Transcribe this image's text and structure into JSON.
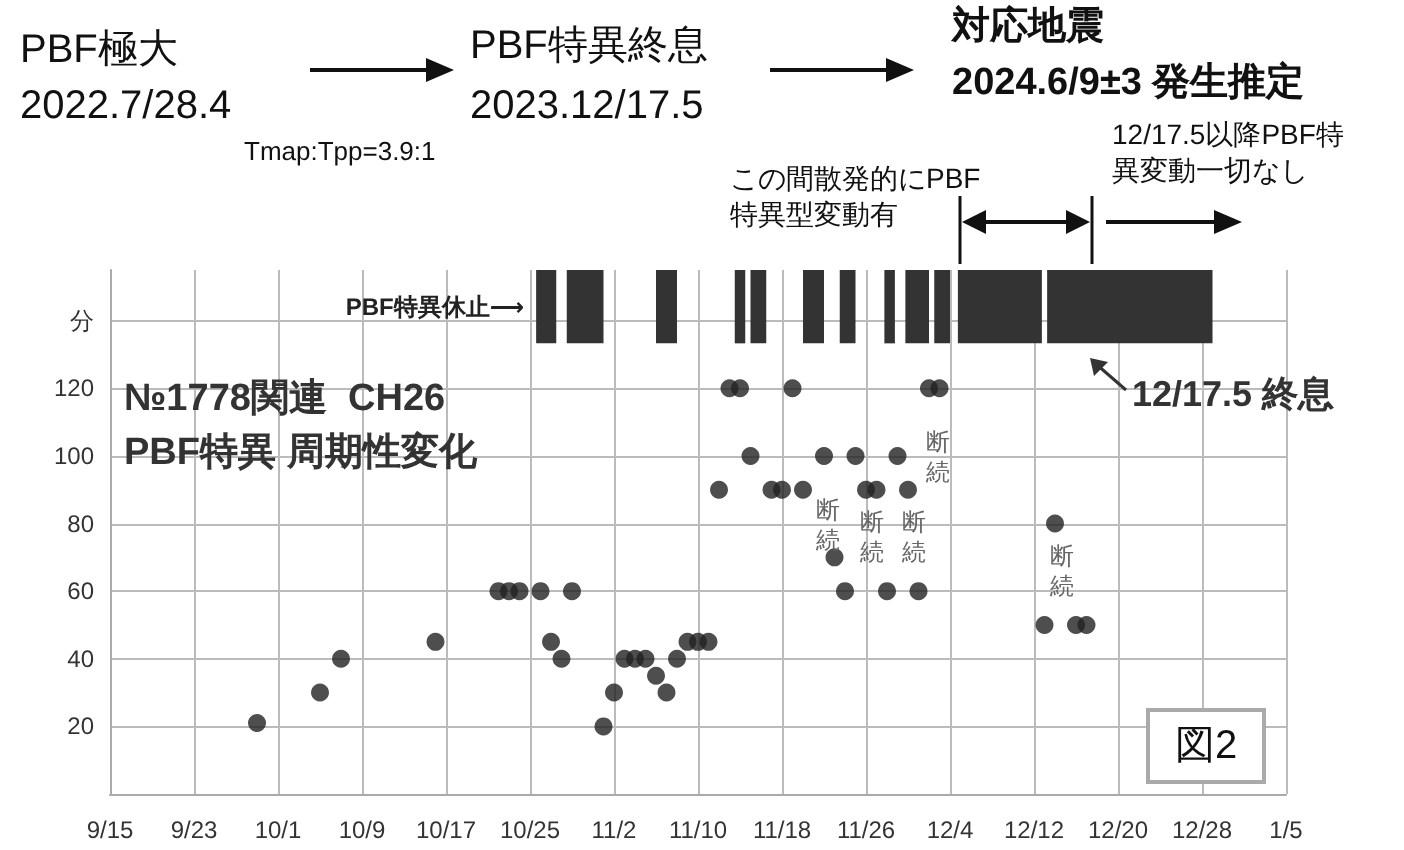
{
  "chart_data": {
    "type": "scatter",
    "title": "№1778関連  CH26",
    "subtitle": "PBF特異 周期性変化",
    "x": [
      "2023-09-29",
      "2023-10-05",
      "2023-10-07",
      "2023-10-16",
      "2023-10-22",
      "2023-10-23",
      "2023-10-24",
      "2023-10-26",
      "2023-10-27",
      "2023-10-28",
      "2023-10-29",
      "2023-11-01",
      "2023-11-02",
      "2023-11-03",
      "2023-11-04",
      "2023-11-05",
      "2023-11-06",
      "2023-11-07",
      "2023-11-08",
      "2023-11-09",
      "2023-11-10",
      "2023-11-11",
      "2023-11-12",
      "2023-11-13",
      "2023-11-14",
      "2023-11-15",
      "2023-11-17",
      "2023-11-18",
      "2023-11-19",
      "2023-11-20",
      "2023-11-22",
      "2023-11-23",
      "2023-11-24",
      "2023-11-25",
      "2023-11-26",
      "2023-11-27",
      "2023-11-28",
      "2023-11-29",
      "2023-11-30",
      "2023-12-01",
      "2023-12-02",
      "2023-12-03",
      "2023-12-13",
      "2023-12-14",
      "2023-12-16",
      "2023-12-17"
    ],
    "series": [
      {
        "color": "#222222",
        "values": [
          21,
          30,
          40,
          45,
          60,
          60,
          60,
          60,
          45,
          40,
          60,
          20,
          30,
          40,
          40,
          40,
          35,
          30,
          40,
          45,
          45,
          45,
          90,
          120,
          120,
          100,
          90,
          90,
          120,
          90,
          100,
          70,
          60,
          100,
          90,
          90,
          60,
          100,
          90,
          60,
          120,
          120,
          50,
          80,
          50,
          50
        ]
      }
    ],
    "xlim": [
      "2023-09-15",
      "2024-01-05"
    ],
    "xticks": [
      {
        "value": "2023-09-15",
        "label": "9/15"
      },
      {
        "value": "2023-09-23",
        "label": "9/23"
      },
      {
        "value": "2023-10-01",
        "label": "10/1"
      },
      {
        "value": "2023-10-09",
        "label": "10/9"
      },
      {
        "value": "2023-10-17",
        "label": "10/17"
      },
      {
        "value": "2023-10-25",
        "label": "10/25"
      },
      {
        "value": "2023-11-02",
        "label": "11/2"
      },
      {
        "value": "2023-11-10",
        "label": "11/10"
      },
      {
        "value": "2023-11-18",
        "label": "11/18"
      },
      {
        "value": "2023-11-26",
        "label": "11/26"
      },
      {
        "value": "2023-12-04",
        "label": "12/4"
      },
      {
        "value": "2023-12-12",
        "label": "12/12"
      },
      {
        "value": "2023-12-20",
        "label": "12/20"
      },
      {
        "value": "2023-12-28",
        "label": "12/28"
      },
      {
        "value": "2024-01-05",
        "label": "1/5"
      }
    ],
    "ylim": [
      0,
      155
    ],
    "yticks": [
      {
        "value": 0,
        "label": null
      },
      20,
      40,
      60,
      80,
      100,
      120,
      {
        "value": 140,
        "label": "分"
      }
    ],
    "grid": true,
    "marker": "circle",
    "bands": [
      {
        "axis": "x",
        "from": "2023-10-25T14:00",
        "to": "2023-10-27T12:00",
        "color": "#333333",
        "label": "PBF特異休止⟶"
      },
      {
        "axis": "x",
        "from": "2023-10-28T12:00",
        "to": "2023-11-01T00:00",
        "color": "#333333"
      },
      {
        "axis": "x",
        "from": "2023-11-06T00:00",
        "to": "2023-11-08T00:00",
        "color": "#333333"
      },
      {
        "axis": "x",
        "from": "2023-11-13T12:00",
        "to": "2023-11-14T12:00",
        "color": "#333333"
      },
      {
        "axis": "x",
        "from": "2023-11-15T00:00",
        "to": "2023-11-16T12:00",
        "color": "#333333"
      },
      {
        "axis": "x",
        "from": "2023-11-20T00:00",
        "to": "2023-11-22T00:00",
        "color": "#333333"
      },
      {
        "axis": "x",
        "from": "2023-11-23T12:00",
        "to": "2023-11-25T00:00",
        "color": "#333333"
      },
      {
        "axis": "x",
        "from": "2023-11-27T18:00",
        "to": "2023-11-28T18:00",
        "color": "#333333"
      },
      {
        "axis": "x",
        "from": "2023-11-29T18:00",
        "to": "2023-12-02T00:00",
        "color": "#333333"
      },
      {
        "axis": "x",
        "from": "2023-12-02T12:00",
        "to": "2023-12-04T00:00",
        "color": "#333333"
      },
      {
        "axis": "x",
        "from": "2023-12-04T18:00",
        "to": "2023-12-12T18:00",
        "color": "#333333"
      },
      {
        "axis": "x",
        "from": "2023-12-13T06:00",
        "to": "2023-12-29T00:00",
        "color": "#333333"
      }
    ],
    "annotations": [
      "PBF極大",
      "2022.7/28.4",
      "PBF特異終息",
      "2023.12/17.5",
      "対応地震",
      "2024.6/9±3 発生推定",
      "Tmap:Tpp=3.9:1",
      "この間散発的にPBF特異型変動有",
      "12/17.5以降PBF特異変動一切なし",
      "12/17.5 終息",
      "断続",
      "断続",
      "断続",
      "断続",
      "断続",
      "図2"
    ]
  }
}
